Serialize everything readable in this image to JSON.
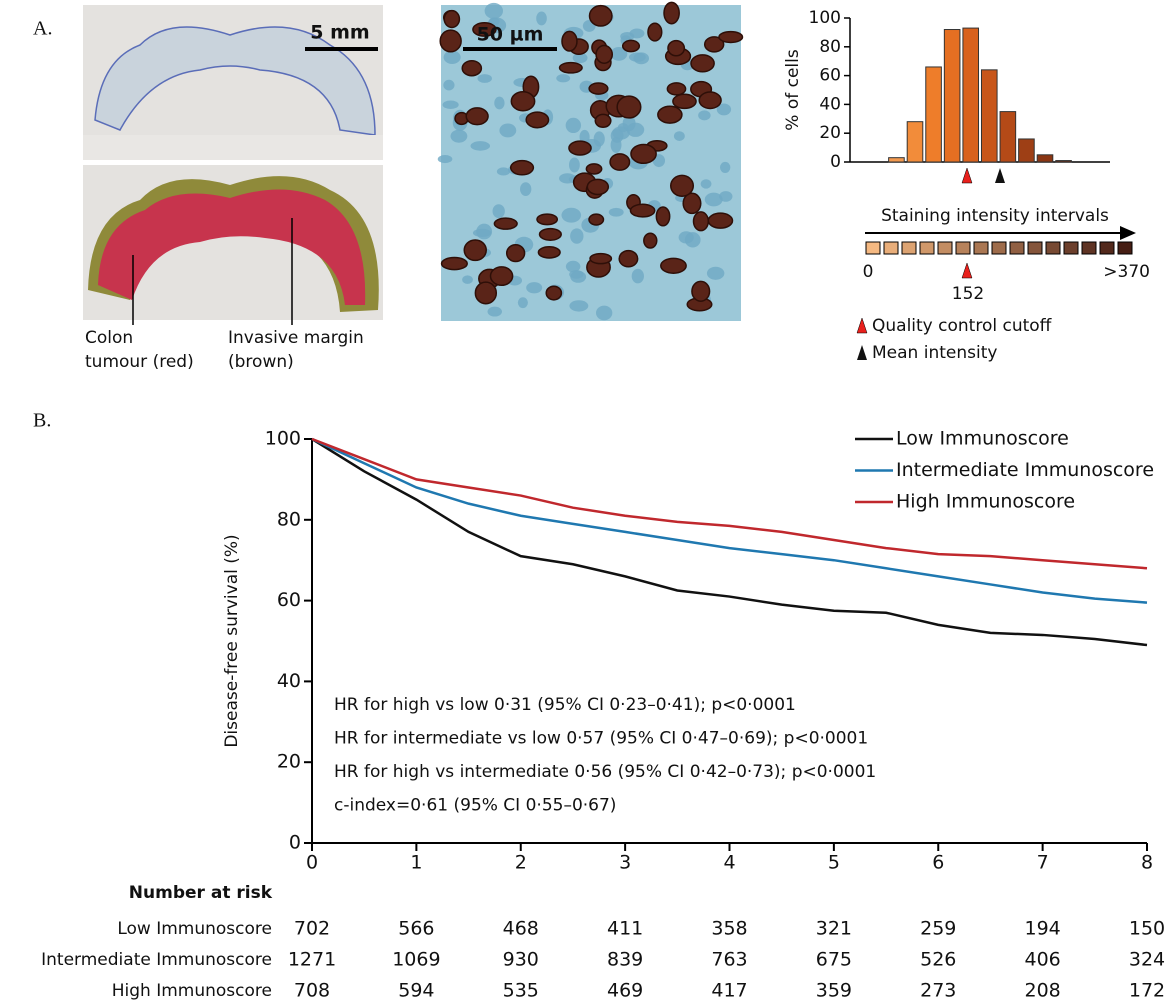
{
  "panel_labels": [
    "A.",
    "B."
  ],
  "images": {
    "scale_bars": [
      "5 mm",
      "50 µm"
    ],
    "labels": [
      "Colon",
      "tumour (red)",
      "Invasive margin",
      "(brown)"
    ]
  },
  "chart_data": [
    {
      "type": "bar",
      "ylabel": "% of cells",
      "categories": [
        null,
        null,
        null,
        null,
        null,
        null,
        null,
        null,
        null,
        null,
        null,
        null,
        null,
        null
      ],
      "values": [
        0,
        0,
        3,
        28,
        66,
        92,
        93,
        64,
        35,
        16,
        5,
        1,
        0,
        0
      ],
      "colors": [
        "#f7b27a",
        "#f6a466",
        "#f39a4f",
        "#f28c3a",
        "#ee7d2a",
        "#e56f22",
        "#d8611d",
        "#c8561a",
        "#b44a17",
        "#9e3f15",
        "#8a3513",
        "#762d12",
        "#662710",
        "#55200e"
      ],
      "ylim": [
        0,
        100
      ],
      "yticks": [
        0,
        20,
        40,
        60,
        80,
        100
      ]
    },
    {
      "type": "line",
      "ylabel": "Disease-free survival (%)",
      "x": [
        0,
        0.5,
        1,
        1.5,
        2,
        2.5,
        3,
        3.5,
        4,
        4.5,
        5,
        5.5,
        6,
        6.5,
        7,
        7.5,
        8
      ],
      "series": [
        {
          "name": "Low Immunoscore",
          "color": "#111111",
          "values": [
            100,
            92,
            85,
            77,
            71,
            69,
            66,
            62.5,
            61,
            59,
            57.5,
            57,
            54,
            52,
            51.5,
            50.5,
            49
          ]
        },
        {
          "name": "Intermediate Immunoscore",
          "color": "#1f78b0",
          "values": [
            100,
            94,
            88,
            84,
            81,
            79,
            77,
            75,
            73,
            71.5,
            70,
            68,
            66,
            64,
            62,
            60.5,
            59.5
          ]
        },
        {
          "name": "High Immunoscore",
          "color": "#c0282d",
          "values": [
            100,
            95,
            90,
            88,
            86,
            83,
            81,
            79.5,
            78.5,
            77,
            75,
            73,
            71.5,
            71,
            70,
            69,
            68
          ]
        }
      ],
      "xlim": [
        0,
        8
      ],
      "xticks": [
        0,
        1,
        2,
        3,
        4,
        5,
        6,
        7,
        8
      ],
      "ylim": [
        0,
        100
      ],
      "yticks": [
        0,
        20,
        40,
        60,
        80,
        100
      ],
      "legend": "upper right",
      "annotations": [
        "HR for high vs low 0·31 (95% CI 0·23–0·41); p<0·0001",
        "HR for intermediate vs low 0·57 (95% CI 0·47–0·69); p<0·0001",
        "HR for high vs intermediate 0·56 (95% CI 0·42–0·73); p<0·0001",
        "c-index=0·61 (95% CI 0·55–0·67)"
      ]
    }
  ],
  "intensity_scale": {
    "title": "Staining intensity intervals",
    "labels": [
      "0",
      "152",
      ">370"
    ]
  },
  "marker_legend": [
    "Quality control cutoff",
    "Mean intensity"
  ],
  "risk_table": {
    "title": "Number at risk",
    "rows": [
      {
        "label": "Low Immunoscore",
        "values": [
          702,
          566,
          468,
          411,
          358,
          321,
          259,
          194,
          150
        ]
      },
      {
        "label": "Intermediate Immunoscore",
        "values": [
          1271,
          1069,
          930,
          839,
          763,
          675,
          526,
          406,
          324
        ]
      },
      {
        "label": "High Immunoscore",
        "values": [
          708,
          594,
          535,
          469,
          417,
          359,
          273,
          208,
          172
        ]
      }
    ]
  }
}
